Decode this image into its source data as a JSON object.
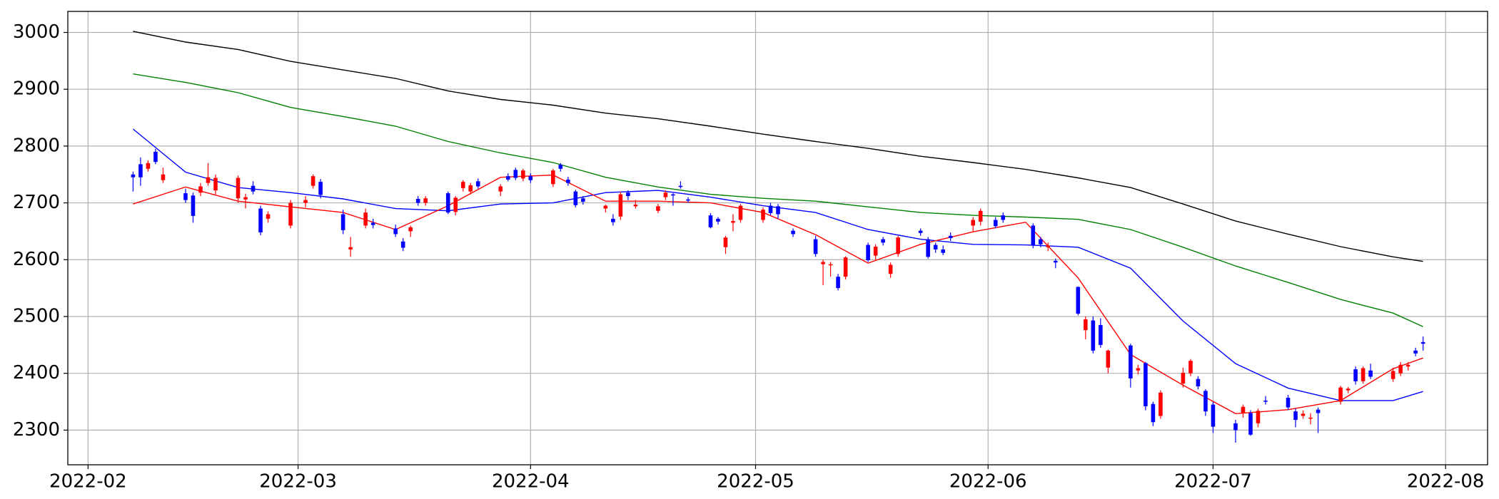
{
  "chart_data": {
    "type": "candlestick",
    "up_color": "#ff0000",
    "down_color": "#0000ff",
    "grid": true,
    "xlim": [
      29.3,
      218.6
    ],
    "xticks": [
      {
        "value": 32,
        "label": "2022-02"
      },
      {
        "value": 60,
        "label": "2022-03"
      },
      {
        "value": 91,
        "label": "2022-04"
      },
      {
        "value": 121,
        "label": "2022-05"
      },
      {
        "value": 152,
        "label": "2022-06"
      },
      {
        "value": 182,
        "label": "2022-07"
      },
      {
        "value": 213,
        "label": "2022-08"
      }
    ],
    "ylim": [
      2239,
      3037
    ],
    "yticks": [
      2300,
      2400,
      2500,
      2600,
      2700,
      2800,
      2900,
      3000
    ],
    "x": [
      38,
      39,
      40,
      41,
      42,
      45,
      46,
      47,
      48,
      49,
      52,
      53,
      54,
      55,
      56,
      59,
      61,
      62,
      63,
      66,
      67,
      69,
      70,
      73,
      74,
      75,
      76,
      77,
      80,
      81,
      82,
      83,
      84,
      87,
      88,
      89,
      90,
      91,
      94,
      95,
      96,
      97,
      98,
      101,
      102,
      103,
      104,
      105,
      108,
      109,
      110,
      111,
      112,
      115,
      116,
      117,
      118,
      119,
      122,
      123,
      124,
      126,
      129,
      130,
      131,
      132,
      133,
      136,
      137,
      138,
      139,
      140,
      143,
      144,
      145,
      146,
      147,
      150,
      151,
      153,
      154,
      158,
      159,
      160,
      161,
      164,
      165,
      166,
      167,
      168,
      171,
      172,
      173,
      174,
      175,
      178,
      179,
      180,
      181,
      182,
      185,
      186,
      187,
      188,
      189,
      192,
      193,
      194,
      195,
      196,
      199,
      200,
      201,
      202,
      203,
      206,
      207,
      208,
      209,
      210
    ],
    "ohlc": [
      [
        2750,
        2755,
        2720,
        2745
      ],
      [
        2768,
        2780,
        2730,
        2745
      ],
      [
        2760,
        2775,
        2755,
        2770
      ],
      [
        2790,
        2795,
        2768,
        2772
      ],
      [
        2740,
        2762,
        2735,
        2750
      ],
      [
        2717,
        2725,
        2700,
        2705
      ],
      [
        2713,
        2718,
        2665,
        2677
      ],
      [
        2718,
        2735,
        2712,
        2729
      ],
      [
        2735,
        2770,
        2730,
        2745
      ],
      [
        2722,
        2750,
        2715,
        2744
      ],
      [
        2708,
        2748,
        2700,
        2744
      ],
      [
        2706,
        2716,
        2690,
        2710
      ],
      [
        2730,
        2738,
        2715,
        2720
      ],
      [
        2690,
        2695,
        2643,
        2648
      ],
      [
        2672,
        2685,
        2665,
        2680
      ],
      [
        2660,
        2705,
        2655,
        2700
      ],
      [
        2700,
        2712,
        2692,
        2705
      ],
      [
        2730,
        2750,
        2725,
        2747
      ],
      [
        2737,
        2742,
        2708,
        2714
      ],
      [
        2680,
        2688,
        2645,
        2652
      ],
      [
        2618,
        2640,
        2605,
        2622
      ],
      [
        2660,
        2690,
        2655,
        2683
      ],
      [
        2665,
        2672,
        2655,
        2661
      ],
      [
        2655,
        2662,
        2640,
        2645
      ],
      [
        2632,
        2638,
        2615,
        2621
      ],
      [
        2650,
        2660,
        2640,
        2657
      ],
      [
        2707,
        2712,
        2695,
        2700
      ],
      [
        2700,
        2712,
        2695,
        2708
      ],
      [
        2717,
        2720,
        2680,
        2683
      ],
      [
        2684,
        2712,
        2678,
        2709
      ],
      [
        2726,
        2740,
        2720,
        2737
      ],
      [
        2720,
        2735,
        2715,
        2731
      ],
      [
        2738,
        2743,
        2725,
        2729
      ],
      [
        2720,
        2733,
        2712,
        2729
      ],
      [
        2747,
        2752,
        2738,
        2741
      ],
      [
        2758,
        2762,
        2740,
        2744
      ],
      [
        2743,
        2760,
        2738,
        2757
      ],
      [
        2747,
        2752,
        2735,
        2740
      ],
      [
        2733,
        2760,
        2728,
        2757
      ],
      [
        2767,
        2770,
        2755,
        2760
      ],
      [
        2741,
        2746,
        2730,
        2735
      ],
      [
        2720,
        2723,
        2692,
        2696
      ],
      [
        2708,
        2712,
        2697,
        2702
      ],
      [
        2690,
        2697,
        2683,
        2695
      ],
      [
        2672,
        2680,
        2660,
        2666
      ],
      [
        2676,
        2720,
        2670,
        2715
      ],
      [
        2718,
        2722,
        2705,
        2712
      ],
      [
        2694,
        2705,
        2690,
        2697
      ],
      [
        2686,
        2698,
        2682,
        2694
      ],
      [
        2710,
        2722,
        2705,
        2718
      ],
      [
        2715,
        2717,
        2695,
        2713
      ],
      [
        2730,
        2738,
        2725,
        2728
      ],
      [
        2706,
        2710,
        2700,
        2704
      ],
      [
        2678,
        2682,
        2655,
        2657
      ],
      [
        2672,
        2675,
        2662,
        2667
      ],
      [
        2622,
        2642,
        2610,
        2639
      ],
      [
        2665,
        2680,
        2650,
        2668
      ],
      [
        2670,
        2698,
        2665,
        2695
      ],
      [
        2670,
        2692,
        2665,
        2688
      ],
      [
        2695,
        2700,
        2678,
        2682
      ],
      [
        2694,
        2698,
        2672,
        2680
      ],
      [
        2651,
        2655,
        2640,
        2645
      ],
      [
        2636,
        2642,
        2605,
        2610
      ],
      [
        2592,
        2600,
        2555,
        2596
      ],
      [
        2590,
        2596,
        2570,
        2592
      ],
      [
        2570,
        2575,
        2546,
        2550
      ],
      [
        2570,
        2606,
        2565,
        2604
      ],
      [
        2626,
        2630,
        2596,
        2599
      ],
      [
        2607,
        2627,
        2600,
        2623
      ],
      [
        2636,
        2640,
        2625,
        2630
      ],
      [
        2575,
        2595,
        2568,
        2591
      ],
      [
        2610,
        2642,
        2605,
        2639
      ],
      [
        2651,
        2655,
        2642,
        2647
      ],
      [
        2636,
        2640,
        2602,
        2605
      ],
      [
        2626,
        2630,
        2612,
        2618
      ],
      [
        2618,
        2625,
        2608,
        2612
      ],
      [
        2642,
        2648,
        2633,
        2638
      ],
      [
        2660,
        2675,
        2650,
        2670
      ],
      [
        2667,
        2690,
        2660,
        2686
      ],
      [
        2670,
        2675,
        2655,
        2659
      ],
      [
        2678,
        2683,
        2665,
        2670
      ],
      [
        2660,
        2664,
        2620,
        2626
      ],
      [
        2636,
        2640,
        2622,
        2627
      ],
      [
        2622,
        2630,
        2615,
        2625
      ],
      [
        2598,
        2602,
        2585,
        2595
      ],
      [
        2552,
        2553,
        2502,
        2505
      ],
      [
        2476,
        2500,
        2460,
        2495
      ],
      [
        2493,
        2500,
        2435,
        2440
      ],
      [
        2485,
        2497,
        2445,
        2450
      ],
      [
        2410,
        2442,
        2400,
        2440
      ],
      [
        2449,
        2452,
        2375,
        2391
      ],
      [
        2405,
        2415,
        2398,
        2409
      ],
      [
        2418,
        2420,
        2335,
        2342
      ],
      [
        2346,
        2350,
        2307,
        2314
      ],
      [
        2325,
        2370,
        2320,
        2366
      ],
      [
        2382,
        2410,
        2375,
        2401
      ],
      [
        2400,
        2425,
        2395,
        2422
      ],
      [
        2390,
        2395,
        2372,
        2377
      ],
      [
        2369,
        2372,
        2325,
        2333
      ],
      [
        2345,
        2350,
        2295,
        2306
      ],
      [
        2312,
        2318,
        2278,
        2300
      ],
      [
        2330,
        2345,
        2322,
        2341
      ],
      [
        2330,
        2335,
        2290,
        2292
      ],
      [
        2312,
        2338,
        2305,
        2334
      ],
      [
        2352,
        2360,
        2345,
        2350
      ],
      [
        2357,
        2362,
        2335,
        2340
      ],
      [
        2333,
        2338,
        2305,
        2318
      ],
      [
        2325,
        2335,
        2320,
        2329
      ],
      [
        2320,
        2330,
        2310,
        2322
      ],
      [
        2336,
        2340,
        2295,
        2330
      ],
      [
        2350,
        2378,
        2345,
        2375
      ],
      [
        2370,
        2376,
        2365,
        2373
      ],
      [
        2407,
        2412,
        2380,
        2386
      ],
      [
        2386,
        2412,
        2382,
        2409
      ],
      [
        2405,
        2417,
        2390,
        2394
      ],
      [
        2390,
        2410,
        2385,
        2404
      ],
      [
        2400,
        2420,
        2395,
        2415
      ],
      [
        2412,
        2420,
        2405,
        2415
      ],
      [
        2440,
        2445,
        2430,
        2435
      ],
      [
        2455,
        2465,
        2440,
        2452
      ]
    ],
    "lines": [
      {
        "color": "#000000",
        "x": [
          38,
          45,
          52,
          59,
          66,
          73,
          80,
          87,
          94,
          101,
          108,
          115,
          122,
          129,
          136,
          143,
          150,
          157,
          164,
          171,
          178,
          185,
          192,
          199,
          206,
          210
        ],
        "values": [
          3002,
          2983,
          2970,
          2949,
          2934,
          2919,
          2897,
          2882,
          2872,
          2858,
          2848,
          2835,
          2821,
          2808,
          2796,
          2782,
          2771,
          2759,
          2744,
          2727,
          2698,
          2668,
          2645,
          2623,
          2605,
          2597
        ]
      },
      {
        "color": "#008000",
        "x": [
          38,
          45,
          52,
          59,
          66,
          73,
          80,
          87,
          94,
          101,
          108,
          115,
          122,
          129,
          136,
          143,
          150,
          157,
          164,
          171,
          178,
          185,
          192,
          199,
          206,
          210
        ],
        "values": [
          2927,
          2912,
          2894,
          2868,
          2852,
          2835,
          2808,
          2788,
          2771,
          2745,
          2728,
          2715,
          2708,
          2703,
          2693,
          2683,
          2678,
          2675,
          2671,
          2653,
          2622,
          2589,
          2560,
          2530,
          2506,
          2482
        ]
      },
      {
        "color": "#0000ff",
        "x": [
          38,
          45,
          52,
          59,
          66,
          73,
          80,
          87,
          94,
          101,
          108,
          115,
          122,
          129,
          136,
          143,
          150,
          157,
          164,
          171,
          178,
          185,
          192,
          199,
          206,
          210
        ],
        "values": [
          2830,
          2754,
          2727,
          2718,
          2707,
          2690,
          2686,
          2698,
          2700,
          2718,
          2722,
          2710,
          2695,
          2683,
          2653,
          2636,
          2627,
          2626,
          2622,
          2585,
          2492,
          2417,
          2374,
          2352,
          2352,
          2368
        ]
      },
      {
        "color": "#ff0000",
        "x": [
          38,
          45,
          52,
          59,
          66,
          73,
          80,
          87,
          94,
          101,
          108,
          115,
          122,
          129,
          136,
          143,
          150,
          157,
          164,
          171,
          178,
          185,
          192,
          199,
          206,
          210
        ],
        "values": [
          2698,
          2728,
          2703,
          2693,
          2683,
          2653,
          2695,
          2745,
          2749,
          2703,
          2703,
          2700,
          2683,
          2644,
          2594,
          2627,
          2649,
          2666,
          2568,
          2433,
          2379,
          2329,
          2336,
          2352,
          2408,
          2427
        ]
      }
    ]
  }
}
